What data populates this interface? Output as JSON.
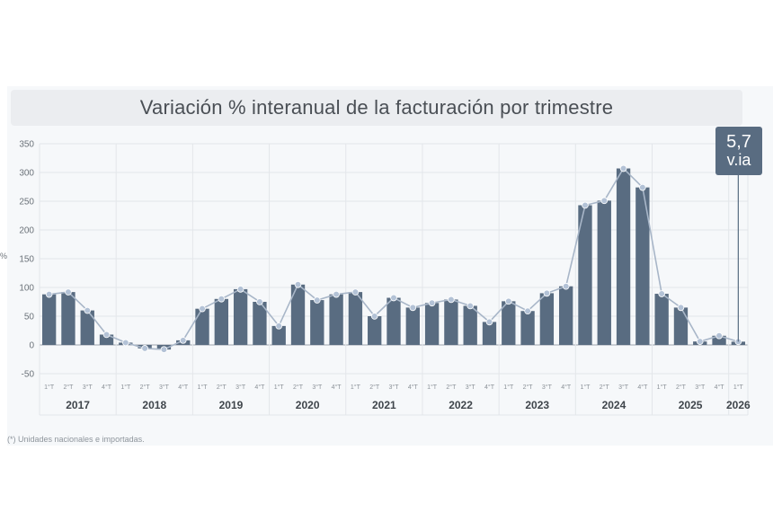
{
  "title": "Variación % interanual de la facturación por trimestre",
  "callout": {
    "value": "5,7",
    "unit": "v.ia"
  },
  "ylabel": "%",
  "footnote": "(*) Unidades nacionales e importadas.",
  "colors": {
    "bar": "#596c81",
    "line": "#a8b6c8",
    "marker": "#b3c2d6",
    "grid": "#e3e6ea",
    "zero": "#9ea5ad"
  },
  "chart_data": {
    "type": "bar",
    "title": "Variación % interanual de la facturación por trimestre",
    "xlabel": "",
    "ylabel": "%",
    "ylim": [
      -50,
      350
    ],
    "yticks": [
      350,
      300,
      250,
      200,
      150,
      100,
      50,
      0,
      -50
    ],
    "grid": true,
    "years": [
      "2017",
      "2018",
      "2019",
      "2020",
      "2021",
      "2022",
      "2023",
      "2024",
      "2025",
      "2026"
    ],
    "quarter_labels": [
      "1°T",
      "2°T",
      "3°T",
      "4°T"
    ],
    "categories": [
      "2017 1°T",
      "2017 2°T",
      "2017 3°T",
      "2017 4°T",
      "2018 1°T",
      "2018 2°T",
      "2018 3°T",
      "2018 4°T",
      "2019 1°T",
      "2019 2°T",
      "2019 3°T",
      "2019 4°T",
      "2020 1°T",
      "2020 2°T",
      "2020 3°T",
      "2020 4°T",
      "2021 1°T",
      "2021 2°T",
      "2021 3°T",
      "2021 4°T",
      "2022 1°T",
      "2022 2°T",
      "2022 3°T",
      "2022 4°T",
      "2023 1°T",
      "2023 2°T",
      "2023 3°T",
      "2023 4°T",
      "2024 1°T",
      "2024 2°T",
      "2024 3°T",
      "2024 4°T",
      "2025 1°T",
      "2025 2°T",
      "2025 3°T",
      "2025 4°T",
      "2026 1°T"
    ],
    "values": [
      88,
      92,
      60,
      18,
      4,
      -6,
      -8,
      8,
      63,
      80,
      97,
      75,
      33,
      105,
      78,
      88,
      92,
      50,
      82,
      65,
      73,
      79,
      68,
      40,
      76,
      59,
      90,
      102,
      243,
      251,
      307,
      274,
      89,
      65,
      6,
      16,
      5.7
    ]
  }
}
